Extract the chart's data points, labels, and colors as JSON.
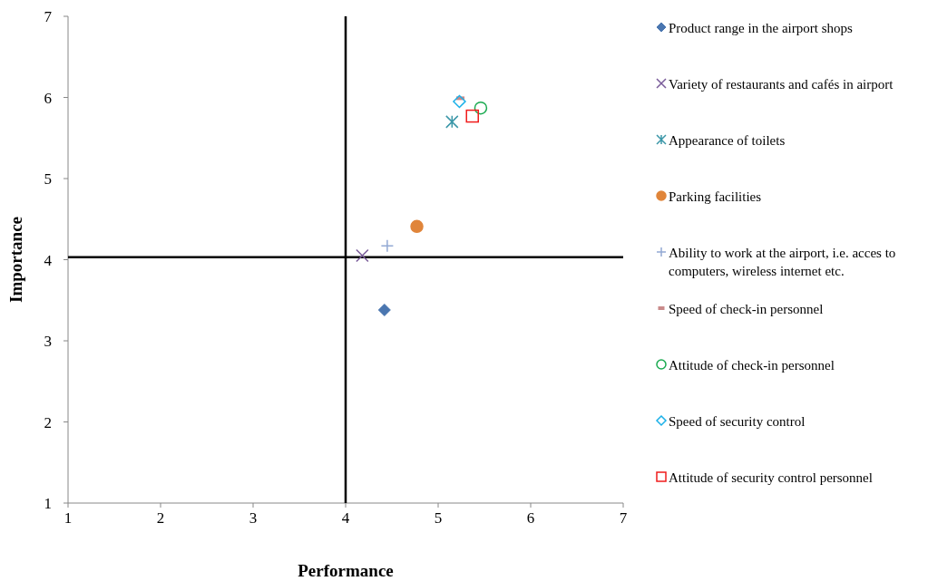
{
  "chart_data": {
    "type": "scatter",
    "xlabel": "Performance",
    "ylabel": "Importance",
    "xlim": [
      1,
      7
    ],
    "ylim": [
      1,
      7
    ],
    "xticks": [
      1,
      2,
      3,
      4,
      5,
      6,
      7
    ],
    "yticks": [
      1,
      2,
      3,
      4,
      5,
      6,
      7
    ],
    "grid": false,
    "legend": "right",
    "ref_lines": [
      {
        "axis": "x",
        "value": 4,
        "color": "#000000"
      },
      {
        "axis": "y",
        "value": 4.03,
        "color": "#000000"
      }
    ],
    "series": [
      {
        "name": "Product range in the airport shops",
        "color": "#4a76b0",
        "marker": "diamond",
        "x": [
          4.42
        ],
        "values": [
          3.38
        ]
      },
      {
        "name": "Variety of restaurants and cafés in airport",
        "color": "#7a5c9a",
        "marker": "cross",
        "x": [
          4.18
        ],
        "values": [
          4.05
        ]
      },
      {
        "name": "Appearance of toilets",
        "color": "#3b97a8",
        "marker": "cross-asterisk",
        "x": [
          5.15
        ],
        "values": [
          5.7
        ]
      },
      {
        "name": "Parking facilities",
        "color": "#e0853a",
        "marker": "circle",
        "x": [
          4.77
        ],
        "values": [
          4.41
        ]
      },
      {
        "name": "Ability to work at the airport, i.e. acces to computers, wireless internet etc.",
        "color": "#93a9d4",
        "marker": "plus",
        "x": [
          4.45
        ],
        "values": [
          4.17
        ]
      },
      {
        "name": "Speed of check-in  personnel",
        "color": "#c98a8a",
        "marker": "square-dash",
        "x": [
          5.24
        ],
        "values": [
          5.99
        ]
      },
      {
        "name": "Attitude of check-in  personnel",
        "color": "#1aaa50",
        "marker": "circle-open",
        "x": [
          5.46
        ],
        "values": [
          5.87
        ]
      },
      {
        "name": "Speed of security control",
        "color": "#1ab0e8",
        "marker": "diamond-open",
        "x": [
          5.23
        ],
        "values": [
          5.95
        ]
      },
      {
        "name": "Attitude of security  control personnel",
        "color": "#f01c1c",
        "marker": "square-open",
        "x": [
          5.37
        ],
        "values": [
          5.77
        ]
      }
    ]
  }
}
